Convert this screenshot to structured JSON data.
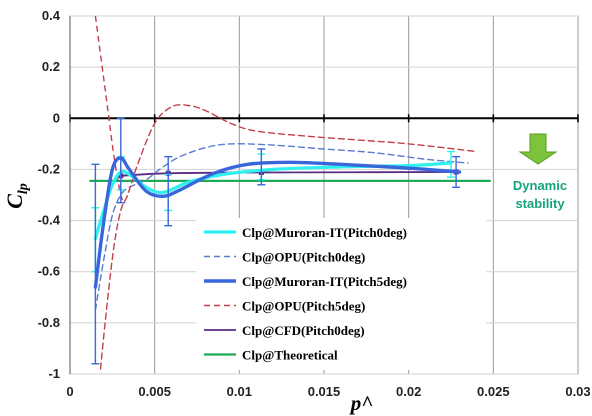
{
  "chart_data": {
    "type": "line",
    "xlabel": "p^",
    "ylabel": "C",
    "ylabel_sub": "lp",
    "xlim": [
      0,
      0.03
    ],
    "ylim": [
      -1,
      0.4
    ],
    "x_ticks": [
      0,
      0.005,
      0.01,
      0.015,
      0.02,
      0.025,
      0.03
    ],
    "x_tick_labels": [
      "0",
      "0.005",
      "0.01",
      "0.015",
      "0.02",
      "0.025",
      "0.03"
    ],
    "y_ticks": [
      0.4,
      0.2,
      0,
      -0.2,
      -0.4,
      -0.6,
      -0.8,
      -1
    ],
    "y_tick_labels": [
      "0.4",
      "0.2",
      "0",
      "-0.2",
      "-0.4",
      "-0.6",
      "-0.8",
      "-1"
    ],
    "grid": true,
    "legend_position": "bottom-center",
    "annotation": {
      "line1": "Dynamic",
      "line2": "stability",
      "color": "#16a37b",
      "arrow_color": "#7dc33b"
    },
    "series": [
      {
        "name": "Clp@Muroran-IT(Pitch0deg)",
        "color": "#2ef0ef",
        "width": 3.2,
        "dash": "",
        "points": [
          [
            0.0015,
            -0.47
          ],
          [
            0.002,
            -0.36
          ],
          [
            0.0025,
            -0.26
          ],
          [
            0.003,
            -0.21
          ],
          [
            0.0035,
            -0.22
          ],
          [
            0.0045,
            -0.27
          ],
          [
            0.0055,
            -0.29
          ],
          [
            0.007,
            -0.25
          ],
          [
            0.009,
            -0.22
          ],
          [
            0.012,
            -0.2
          ],
          [
            0.016,
            -0.19
          ],
          [
            0.02,
            -0.185
          ],
          [
            0.0225,
            -0.175
          ]
        ],
        "error_bars": [
          [
            0.0015,
            -0.6,
            -0.35
          ],
          [
            0.003,
            -0.28,
            -0.15
          ],
          [
            0.0058,
            -0.36,
            -0.22
          ],
          [
            0.0113,
            -0.24,
            -0.14
          ],
          [
            0.0225,
            -0.23,
            -0.13
          ]
        ],
        "error_color": "#2ef0ef"
      },
      {
        "name": "Clp@OPU(Pitch0deg)",
        "color": "#5a7bd0",
        "width": 1.4,
        "dash": "6 4",
        "points": [
          [
            0.0015,
            -0.75
          ],
          [
            0.002,
            -0.55
          ],
          [
            0.0025,
            -0.38
          ],
          [
            0.003,
            -0.3
          ],
          [
            0.0035,
            -0.27
          ],
          [
            0.0045,
            -0.24
          ],
          [
            0.0055,
            -0.19
          ],
          [
            0.0065,
            -0.15
          ],
          [
            0.008,
            -0.115
          ],
          [
            0.0095,
            -0.1
          ],
          [
            0.012,
            -0.105
          ],
          [
            0.015,
            -0.12
          ],
          [
            0.018,
            -0.135
          ],
          [
            0.021,
            -0.16
          ],
          [
            0.0235,
            -0.175
          ]
        ]
      },
      {
        "name": "Clp@Muroran-IT(Pitch5deg)",
        "color": "#3a66db",
        "width": 3.4,
        "dash": "",
        "points": [
          [
            0.0015,
            -0.66
          ],
          [
            0.002,
            -0.4
          ],
          [
            0.0025,
            -0.2
          ],
          [
            0.003,
            -0.155
          ],
          [
            0.0035,
            -0.2
          ],
          [
            0.0045,
            -0.285
          ],
          [
            0.0055,
            -0.305
          ],
          [
            0.0065,
            -0.28
          ],
          [
            0.0085,
            -0.215
          ],
          [
            0.0105,
            -0.18
          ],
          [
            0.013,
            -0.172
          ],
          [
            0.016,
            -0.18
          ],
          [
            0.02,
            -0.195
          ],
          [
            0.023,
            -0.21
          ]
        ],
        "error_bars": [
          [
            0.0015,
            -0.96,
            -0.18
          ],
          [
            0.003,
            -0.33,
            0.0
          ],
          [
            0.0058,
            -0.42,
            -0.15
          ],
          [
            0.0113,
            -0.26,
            -0.12
          ],
          [
            0.0228,
            -0.27,
            -0.15
          ]
        ],
        "error_color": "#3a66db"
      },
      {
        "name": "Clp@OPU(Pitch5deg)",
        "color": "#c0404a",
        "width": 1.4,
        "dash": "6 4",
        "points": [
          [
            0.0018,
            -0.98
          ],
          [
            0.0022,
            -0.72
          ],
          [
            0.0026,
            -0.5
          ],
          [
            0.003,
            -0.36
          ],
          [
            0.0034,
            -0.3
          ],
          [
            0.004,
            -0.18
          ],
          [
            0.005,
            -0.02
          ],
          [
            0.006,
            0.045
          ],
          [
            0.007,
            0.05
          ],
          [
            0.008,
            0.03
          ],
          [
            0.0095,
            -0.02
          ],
          [
            0.011,
            -0.05
          ],
          [
            0.014,
            -0.07
          ],
          [
            0.017,
            -0.085
          ],
          [
            0.02,
            -0.1
          ],
          [
            0.024,
            -0.13
          ]
        ],
        "branch_points": [
          [
            0.0015,
            0.4
          ],
          [
            0.0017,
            0.3
          ],
          [
            0.002,
            0.15
          ],
          [
            0.0023,
            0.0
          ],
          [
            0.0026,
            -0.15
          ],
          [
            0.003,
            -0.3
          ],
          [
            0.0033,
            -0.33
          ]
        ]
      },
      {
        "name": "Clp@CFD(Pitch0deg)",
        "color": "#5b2c83",
        "width": 1.8,
        "dash": "",
        "points": [
          [
            0.003,
            -0.225
          ],
          [
            0.0058,
            -0.215
          ],
          [
            0.0113,
            -0.212
          ],
          [
            0.0228,
            -0.21
          ]
        ],
        "markers": true
      },
      {
        "name": "Clp@Theoretical",
        "color": "#1faa5a",
        "width": 2.2,
        "dash": "",
        "points": [
          [
            0.0012,
            -0.245
          ],
          [
            0.0248,
            -0.245
          ]
        ]
      }
    ]
  }
}
